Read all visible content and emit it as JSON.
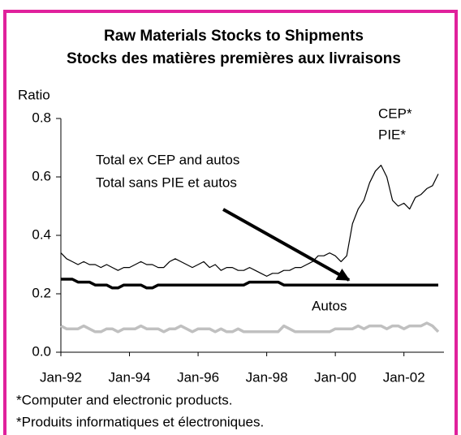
{
  "chart_data": {
    "type": "line",
    "title": "Raw Materials Stocks to Shipments",
    "subtitle": "Stocks des matières premières aux livraisons",
    "y_axis_label": "Ratio",
    "annotations": [
      "CEP*",
      "PIE*",
      "Total ex CEP and autos",
      "Total sans PIE et autos",
      "Autos"
    ],
    "footnotes": [
      "*Computer and electronic products.",
      "*Produits informatiques et électroniques."
    ],
    "x": [
      0,
      2,
      4,
      6,
      8,
      10,
      12,
      14,
      16,
      18,
      20,
      22,
      24,
      26,
      28,
      30,
      32,
      34,
      36,
      38,
      40,
      42,
      44,
      46,
      48,
      50,
      52,
      54,
      56,
      58,
      60,
      62,
      64,
      66,
      68,
      70,
      72,
      74,
      76,
      78,
      80,
      82,
      84,
      86,
      88,
      90,
      92,
      94,
      96,
      98,
      100,
      102,
      104,
      106,
      108,
      110,
      112,
      114,
      116,
      118,
      120,
      122,
      124,
      126,
      128,
      130,
      132
    ],
    "xlim": [
      0,
      134
    ],
    "xticks": [
      {
        "value": 0,
        "label": "Jan-92"
      },
      {
        "value": 24,
        "label": "Jan-94"
      },
      {
        "value": 48,
        "label": "Jan-96"
      },
      {
        "value": 72,
        "label": "Jan-98"
      },
      {
        "value": 96,
        "label": "Jan-00"
      },
      {
        "value": 120,
        "label": "Jan-02"
      }
    ],
    "ylim": [
      0,
      0.8
    ],
    "yticks": [
      {
        "value": 0,
        "label": "0.0"
      },
      0.2,
      0.4,
      0.6,
      0.8
    ],
    "series": [
      {
        "color": "#000000",
        "width": 1.2,
        "values": [
          0.34,
          0.32,
          0.31,
          0.3,
          0.31,
          0.3,
          0.3,
          0.29,
          0.3,
          0.29,
          0.28,
          0.29,
          0.29,
          0.3,
          0.31,
          0.3,
          0.3,
          0.29,
          0.29,
          0.31,
          0.32,
          0.31,
          0.3,
          0.29,
          0.3,
          0.31,
          0.29,
          0.3,
          0.28,
          0.29,
          0.29,
          0.28,
          0.28,
          0.29,
          0.28,
          0.27,
          0.26,
          0.27,
          0.27,
          0.28,
          0.28,
          0.29,
          0.29,
          0.3,
          0.31,
          0.33,
          0.33,
          0.34,
          0.33,
          0.31,
          0.33,
          0.44,
          0.49,
          0.52,
          0.58,
          0.62,
          0.64,
          0.6,
          0.52,
          0.5,
          0.51,
          0.49,
          0.53,
          0.54,
          0.56,
          0.57,
          0.61
        ]
      },
      {
        "color": "#000000",
        "width": 3.5,
        "values": [
          0.25,
          0.25,
          0.25,
          0.24,
          0.24,
          0.24,
          0.23,
          0.23,
          0.23,
          0.22,
          0.22,
          0.23,
          0.23,
          0.23,
          0.23,
          0.22,
          0.22,
          0.23,
          0.23,
          0.23,
          0.23,
          0.23,
          0.23,
          0.23,
          0.23,
          0.23,
          0.23,
          0.23,
          0.23,
          0.23,
          0.23,
          0.23,
          0.23,
          0.24,
          0.24,
          0.24,
          0.24,
          0.24,
          0.24,
          0.23,
          0.23,
          0.23,
          0.23,
          0.23,
          0.23,
          0.23,
          0.23,
          0.23,
          0.23,
          0.23,
          0.23,
          0.23,
          0.23,
          0.23,
          0.23,
          0.23,
          0.23,
          0.23,
          0.23,
          0.23,
          0.23,
          0.23,
          0.23,
          0.23,
          0.23,
          0.23,
          0.23
        ]
      },
      {
        "color": "#c0c0c0",
        "width": 3.5,
        "values": [
          0.09,
          0.08,
          0.08,
          0.08,
          0.09,
          0.08,
          0.07,
          0.07,
          0.08,
          0.08,
          0.07,
          0.08,
          0.08,
          0.08,
          0.09,
          0.08,
          0.08,
          0.08,
          0.07,
          0.08,
          0.08,
          0.09,
          0.08,
          0.07,
          0.08,
          0.08,
          0.08,
          0.07,
          0.08,
          0.07,
          0.07,
          0.08,
          0.07,
          0.07,
          0.07,
          0.07,
          0.07,
          0.07,
          0.07,
          0.09,
          0.08,
          0.07,
          0.07,
          0.07,
          0.07,
          0.07,
          0.07,
          0.07,
          0.08,
          0.08,
          0.08,
          0.08,
          0.09,
          0.08,
          0.09,
          0.09,
          0.09,
          0.08,
          0.09,
          0.09,
          0.08,
          0.09,
          0.09,
          0.09,
          0.1,
          0.09,
          0.07
        ]
      }
    ]
  }
}
